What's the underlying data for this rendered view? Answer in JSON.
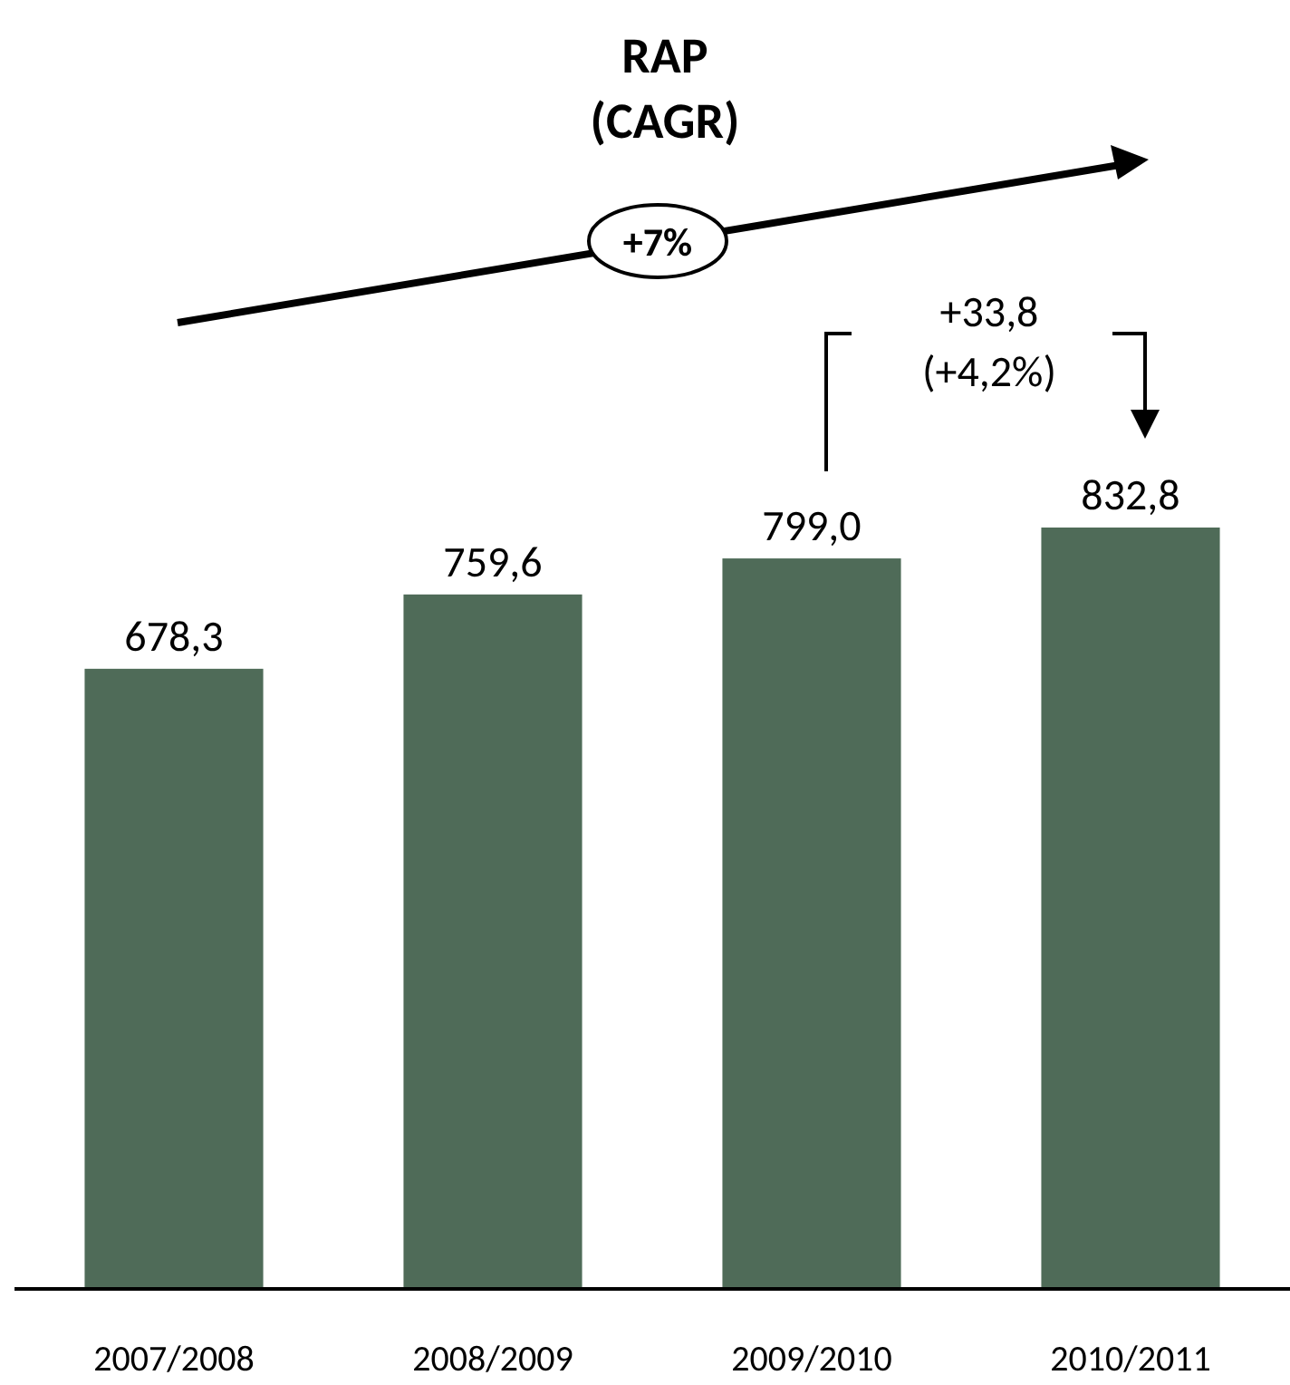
{
  "chart_data": {
    "type": "bar",
    "title": "RAP\n(CAGR)",
    "categories": [
      "2007/2008",
      "2008/2009",
      "2009/2010",
      "2010/2011"
    ],
    "values": [
      678.3,
      759.6,
      799.0,
      832.8
    ],
    "value_labels": [
      "678,3",
      "759,6",
      "799,0",
      "832,8"
    ],
    "color": "#4f6b58",
    "annotations": [
      "+7%",
      "+33,8",
      "(+4,2%)"
    ]
  }
}
